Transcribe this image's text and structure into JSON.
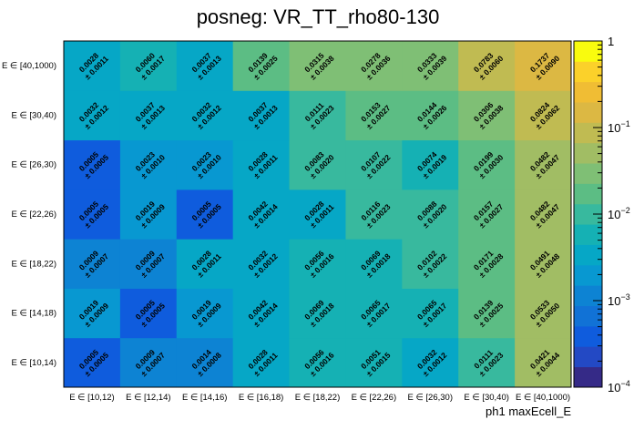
{
  "chart_data": {
    "type": "heatmap",
    "title": "posneg: VR_TT_rho80-130",
    "xlabel": "ph1 maxEcell_E",
    "ylabel": "",
    "x_categories": [
      "E ∈ [10,12)",
      "E ∈ [12,14)",
      "E ∈ [14,16)",
      "E ∈ [16,18)",
      "E ∈ [18,22)",
      "E ∈ [22,26)",
      "E ∈ [26,30)",
      "E ∈ [30,40)",
      "E ∈ [40,1000)"
    ],
    "y_categories": [
      "E ∈ [10,14)",
      "E ∈ [14,18)",
      "E ∈ [18,22)",
      "E ∈ [22,26)",
      "E ∈ [26,30)",
      "E ∈ [30,40)",
      "E ∈ [40,1000)"
    ],
    "values": [
      [
        "0.0005",
        "0.0009",
        "0.0014",
        "0.0028",
        "0.0056",
        "0.0051",
        "0.0032",
        "0.0111",
        "0.0421"
      ],
      [
        "0.0019",
        "0.0005",
        "0.0019",
        "0.0042",
        "0.0069",
        "0.0065",
        "0.0065",
        "0.0139",
        "0.0533"
      ],
      [
        "0.0009",
        "0.0009",
        "0.0028",
        "0.0032",
        "0.0056",
        "0.0069",
        "0.0102",
        "0.0171",
        "0.0491"
      ],
      [
        "0.0005",
        "0.0019",
        "0.0005",
        "0.0042",
        "0.0028",
        "0.0116",
        "0.0088",
        "0.0157",
        "0.0482"
      ],
      [
        "0.0005",
        "0.0023",
        "0.0023",
        "0.0028",
        "0.0083",
        "0.0107",
        "0.0074",
        "0.0199",
        "0.0482"
      ],
      [
        "0.0032",
        "0.0037",
        "0.0032",
        "0.0037",
        "0.0111",
        "0.0153",
        "0.0144",
        "0.0306",
        "0.0824"
      ],
      [
        "0.0028",
        "0.0060",
        "0.0037",
        "0.0139",
        "0.0315",
        "0.0278",
        "0.0333",
        "0.0783",
        "0.1737"
      ]
    ],
    "errors": [
      [
        "0.0005",
        "0.0007",
        "0.0008",
        "0.0011",
        "0.0016",
        "0.0015",
        "0.0012",
        "0.0023",
        "0.0044"
      ],
      [
        "0.0009",
        "0.0005",
        "0.0009",
        "0.0014",
        "0.0018",
        "0.0017",
        "0.0017",
        "0.0025",
        "0.0050"
      ],
      [
        "0.0007",
        "0.0007",
        "0.0011",
        "0.0012",
        "0.0016",
        "0.0018",
        "0.0022",
        "0.0028",
        "0.0048"
      ],
      [
        "0.0005",
        "0.0009",
        "0.0005",
        "0.0014",
        "0.0011",
        "0.0023",
        "0.0020",
        "0.0027",
        "0.0047"
      ],
      [
        "0.0005",
        "0.0010",
        "0.0010",
        "0.0011",
        "0.0020",
        "0.0022",
        "0.0019",
        "0.0030",
        "0.0047"
      ],
      [
        "0.0012",
        "0.0013",
        "0.0012",
        "0.0013",
        "0.0023",
        "0.0027",
        "0.0026",
        "0.0038",
        "0.0062"
      ],
      [
        "0.0011",
        "0.0017",
        "0.0013",
        "0.0025",
        "0.0038",
        "0.0036",
        "0.0039",
        "0.0060",
        "0.0090"
      ]
    ],
    "error_prefix": "± ",
    "zscale": "log",
    "zlim": [
      0.0001,
      1
    ],
    "colorbar_ticks": [
      {
        "value": 1,
        "label": "1"
      },
      {
        "value": 0.1,
        "label": "10",
        "sup": "−1"
      },
      {
        "value": 0.01,
        "label": "10",
        "sup": "−2"
      },
      {
        "value": 0.001,
        "label": "10",
        "sup": "−3"
      },
      {
        "value": 0.0001,
        "label": "10",
        "sup": "−4"
      }
    ],
    "palette": [
      "#352a87",
      "#2349c4",
      "#0f5cdd",
      "#1172d6",
      "#0d83d3",
      "#0898d1",
      "#06a7c6",
      "#15b1b4",
      "#38b99e",
      "#5cbd84",
      "#7fbf75",
      "#a1bd64",
      "#c0bb52",
      "#dcb843",
      "#f0bd34",
      "#fbd12a",
      "#f9fb0e"
    ],
    "grid": false
  }
}
